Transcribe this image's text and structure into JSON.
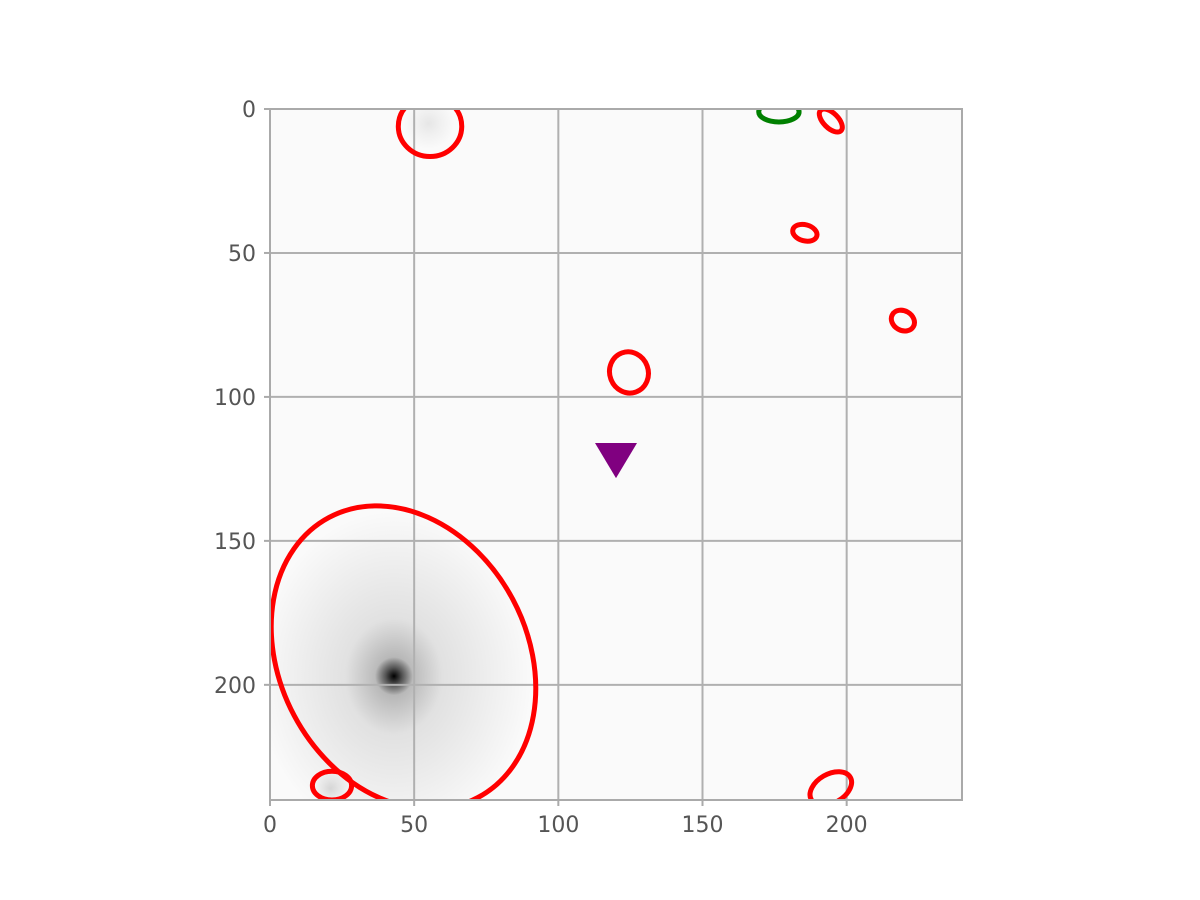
{
  "chart_data": {
    "type": "scatter",
    "description_of_kind": "image cutout with elliptical source apertures",
    "title": "",
    "xlabel": "",
    "ylabel": "",
    "xlim": [
      0,
      240
    ],
    "ylim": [
      240,
      0
    ],
    "y_inverted": true,
    "grid": true,
    "x_ticks": [
      0,
      50,
      100,
      150,
      200
    ],
    "y_ticks": [
      0,
      50,
      100,
      150,
      200
    ],
    "colors": {
      "ellipse_main": "#ff0000",
      "ellipse_alt": "#008000",
      "marker": "#800080",
      "background": "#fafafa",
      "grid": "#b0b0b0"
    },
    "image_sources": [
      {
        "x": 43,
        "y": 197,
        "peak": 1.0,
        "sigma": 2.2,
        "halo_sigma": 16
      },
      {
        "x": 55,
        "y": 5,
        "peak": 0.08,
        "sigma": 3
      },
      {
        "x": 21,
        "y": 236,
        "peak": 0.12,
        "sigma": 2
      }
    ],
    "ellipses": [
      {
        "x": 55.5,
        "y": 6,
        "a": 11,
        "b": 10.5,
        "angle": 0,
        "color": "#ff0000"
      },
      {
        "x": 176.5,
        "y": 1,
        "a": 7,
        "b": 3.5,
        "angle": 0,
        "color": "#008000"
      },
      {
        "x": 194.5,
        "y": 4,
        "a": 5,
        "b": 2.6,
        "angle": 45,
        "color": "#ff0000"
      },
      {
        "x": 185.5,
        "y": 43,
        "a": 4.3,
        "b": 2.8,
        "angle": 15,
        "color": "#ff0000"
      },
      {
        "x": 219.5,
        "y": 73.5,
        "a": 4.2,
        "b": 3.4,
        "angle": 30,
        "color": "#ff0000"
      },
      {
        "x": 124.5,
        "y": 91.5,
        "a": 7.2,
        "b": 6.7,
        "angle": 70,
        "color": "#ff0000"
      },
      {
        "x": 46.3,
        "y": 190.5,
        "a": 55,
        "b": 43,
        "angle": 62,
        "color": "#ff0000"
      },
      {
        "x": 21.5,
        "y": 235,
        "a": 6.8,
        "b": 5,
        "angle": 0,
        "color": "#ff0000"
      },
      {
        "x": 194.5,
        "y": 236,
        "a": 7.8,
        "b": 5,
        "angle": -30,
        "color": "#ff0000"
      }
    ],
    "markers": [
      {
        "x": 120,
        "y": 122,
        "shape": "triangle-down",
        "color": "#800080"
      }
    ]
  }
}
